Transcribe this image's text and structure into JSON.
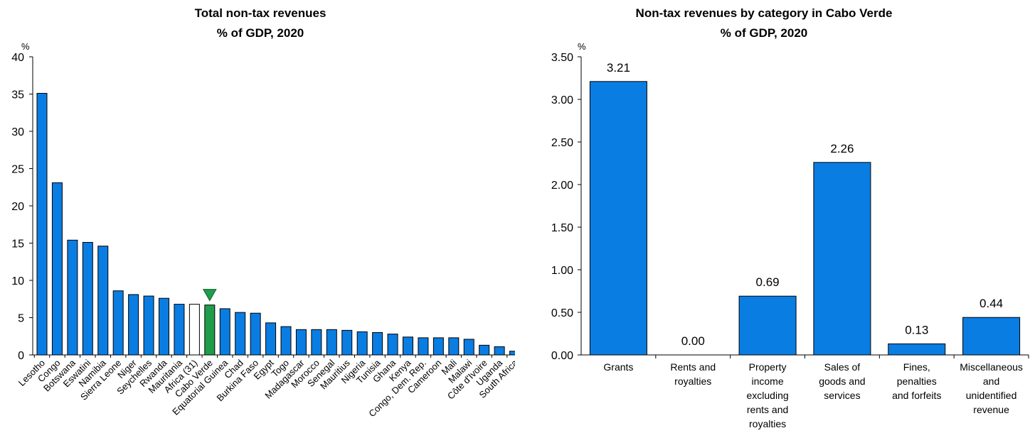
{
  "chart_data": [
    {
      "type": "bar",
      "title": "Total non-tax revenues",
      "subtitle": "% of GDP, 2020",
      "ylabel": "%",
      "ylim": [
        0,
        40
      ],
      "yticks": [
        0,
        5,
        10,
        15,
        20,
        25,
        30,
        35,
        40
      ],
      "categories": [
        "Lesotho",
        "Congo",
        "Botswana",
        "Eswatini",
        "Namibia",
        "Sierra Leone",
        "Niger",
        "Seychelles",
        "Rwanda",
        "Mauritania",
        "Africa (31)",
        "Cabo Verde",
        "Equatorial Guinea",
        "Chad",
        "Burkina Faso",
        "Egypt",
        "Togo",
        "Madagascar",
        "Morocco",
        "Senegal",
        "Mauritius",
        "Nigeria",
        "Tunisia",
        "Ghana",
        "Kenya",
        "Congo, Dem. Rep.",
        "Cameroon",
        "Mali",
        "Malawi",
        "Côte d'Ivoire",
        "Uganda",
        "South Africa"
      ],
      "values": [
        35.1,
        23.1,
        15.4,
        15.1,
        14.6,
        8.6,
        8.1,
        7.9,
        7.6,
        6.8,
        6.8,
        6.7,
        6.2,
        5.7,
        5.6,
        4.3,
        3.8,
        3.4,
        3.4,
        3.4,
        3.3,
        3.1,
        3.0,
        2.8,
        2.4,
        2.3,
        2.3,
        2.3,
        2.1,
        1.3,
        1.1,
        0.5
      ],
      "colors": {
        "default": "#0a7de3",
        "average": "#ffffff",
        "highlight": "#1f9d4a",
        "edge": "#000000"
      },
      "average_category": "Africa (31)",
      "highlight_category": "Cabo Verde",
      "marker": {
        "category": "Cabo Verde",
        "shape": "down-triangle",
        "color": "#1f9d4a"
      }
    },
    {
      "type": "bar",
      "title": "Non-tax revenues by category in Cabo Verde",
      "subtitle": "% of GDP, 2020",
      "ylabel": "%",
      "ylim": [
        0,
        3.5
      ],
      "yticks": [
        "0.00",
        "0.50",
        "1.00",
        "1.50",
        "2.00",
        "2.50",
        "3.00",
        "3.50"
      ],
      "categories": [
        [
          "Grants"
        ],
        [
          "Rents and",
          "royalties"
        ],
        [
          "Property",
          "income",
          "excluding",
          "rents and",
          "royalties"
        ],
        [
          "Sales of",
          "goods and",
          "services"
        ],
        [
          "Fines,",
          "penalties",
          "and forfeits"
        ],
        [
          "Miscellaneous",
          "and",
          "unidentified",
          "revenue"
        ]
      ],
      "values": [
        3.21,
        0.0,
        0.69,
        2.26,
        0.13,
        0.44
      ],
      "labels": [
        "3.21",
        "0.00",
        "0.69",
        "2.26",
        "0.13",
        "0.44"
      ],
      "colors": {
        "default": "#0a7de3",
        "edge": "#000000"
      }
    }
  ]
}
